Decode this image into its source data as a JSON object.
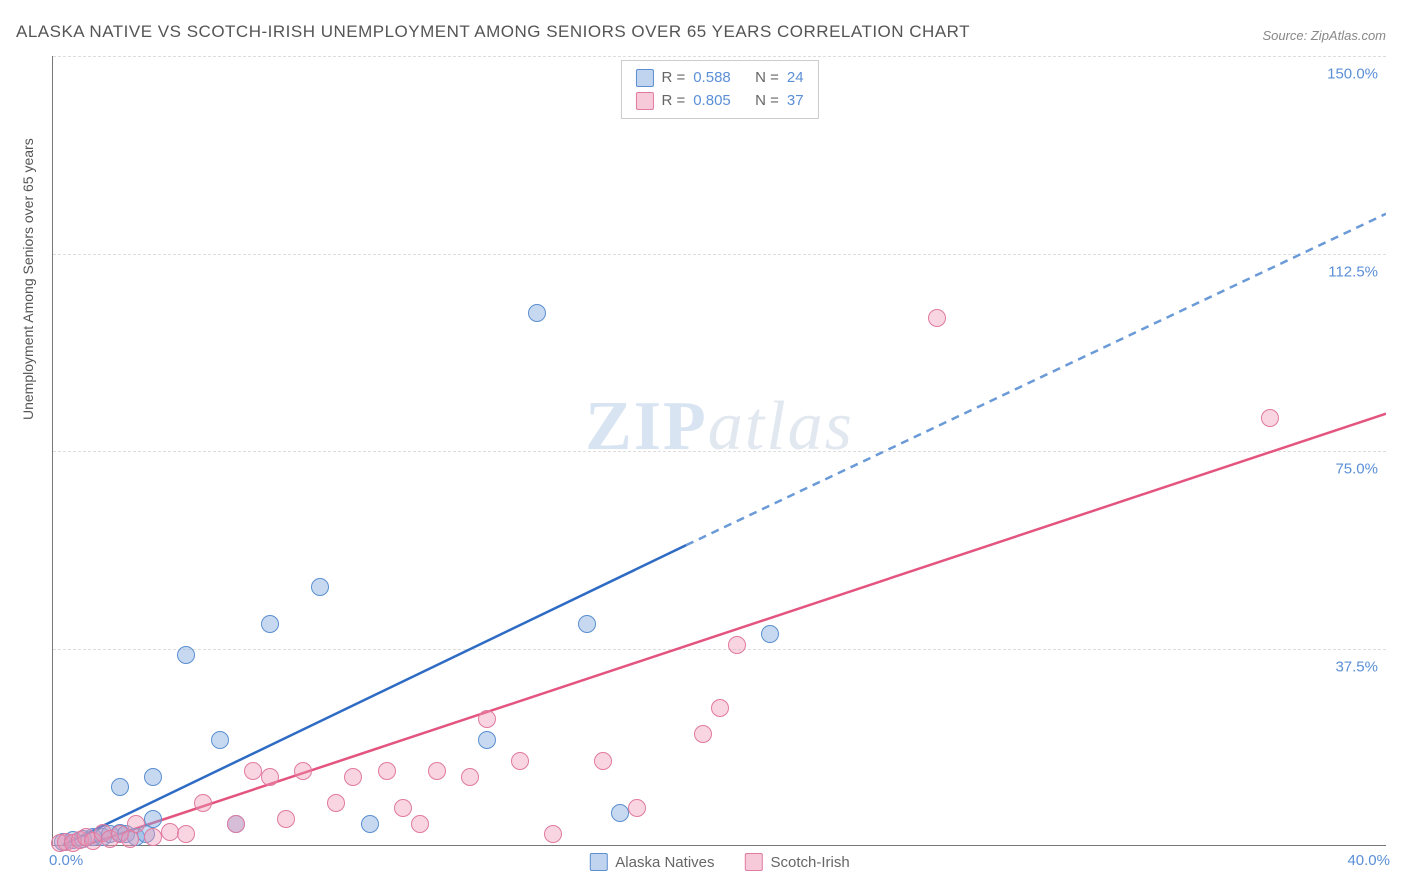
{
  "title": "ALASKA NATIVE VS SCOTCH-IRISH UNEMPLOYMENT AMONG SENIORS OVER 65 YEARS CORRELATION CHART",
  "source": "Source: ZipAtlas.com",
  "ylabel": "Unemployment Among Seniors over 65 years",
  "watermark_a": "ZIP",
  "watermark_b": "atlas",
  "chart": {
    "type": "scatter",
    "xlim": [
      0,
      40
    ],
    "ylim": [
      0,
      150
    ],
    "xtick_min_label": "0.0%",
    "xtick_max_label": "40.0%",
    "yticks": [
      37.5,
      75.0,
      112.5,
      150.0
    ],
    "ytick_labels": [
      "37.5%",
      "75.0%",
      "112.5%",
      "150.0%"
    ],
    "background_color": "#ffffff",
    "grid_color": "#dddddd",
    "axis_color": "#777777",
    "tick_label_color": "#5b8fd6",
    "marker_radius": 9,
    "series": [
      {
        "name": "Alaska Natives",
        "color_fill": "rgba(130,170,225,0.45)",
        "color_stroke": "#5a8fd0",
        "line_color": "#2e6bc4",
        "line_dash_color": "#6a9ad8",
        "R": 0.588,
        "N": 24,
        "trend": {
          "x1": 0.3,
          "y1": 0,
          "x_solid_end": 19,
          "y_solid_end": 57,
          "x2": 40,
          "y2": 120
        },
        "points": [
          [
            0.3,
            0.5
          ],
          [
            0.6,
            1.0
          ],
          [
            0.9,
            1.2
          ],
          [
            1.2,
            1.5
          ],
          [
            1.5,
            1.5
          ],
          [
            1.7,
            2.0
          ],
          [
            2.0,
            2.3
          ],
          [
            2.2,
            2.0
          ],
          [
            2.5,
            1.5
          ],
          [
            2.8,
            2.0
          ],
          [
            2.0,
            11
          ],
          [
            3.0,
            13
          ],
          [
            3.0,
            5
          ],
          [
            4.0,
            36
          ],
          [
            5.0,
            20
          ],
          [
            5.5,
            4
          ],
          [
            6.5,
            42
          ],
          [
            8.0,
            49
          ],
          [
            9.5,
            4
          ],
          [
            13.0,
            20
          ],
          [
            14.5,
            101
          ],
          [
            16.0,
            42
          ],
          [
            17.0,
            6
          ],
          [
            21.5,
            40
          ]
        ]
      },
      {
        "name": "Scotch-Irish",
        "color_fill": "rgba(240,150,180,0.4)",
        "color_stroke": "#e07aa0",
        "line_color": "#e3557f",
        "R": 0.805,
        "N": 37,
        "trend": {
          "x1": 1.0,
          "y1": 0,
          "x2": 40,
          "y2": 82
        },
        "points": [
          [
            0.2,
            0.3
          ],
          [
            0.4,
            0.6
          ],
          [
            0.6,
            0.4
          ],
          [
            0.8,
            1.0
          ],
          [
            1.0,
            1.6
          ],
          [
            1.2,
            0.8
          ],
          [
            1.5,
            2.3
          ],
          [
            1.7,
            1.2
          ],
          [
            2.0,
            2.0
          ],
          [
            2.3,
            1.2
          ],
          [
            2.5,
            4
          ],
          [
            3.0,
            1.5
          ],
          [
            3.5,
            2.5
          ],
          [
            4.0,
            2.0
          ],
          [
            4.5,
            8
          ],
          [
            5.5,
            4
          ],
          [
            6.0,
            14
          ],
          [
            6.5,
            13
          ],
          [
            7.0,
            5
          ],
          [
            7.5,
            14
          ],
          [
            8.5,
            8
          ],
          [
            9.0,
            13
          ],
          [
            10.0,
            14
          ],
          [
            10.5,
            7
          ],
          [
            11.0,
            4
          ],
          [
            11.5,
            14
          ],
          [
            12.5,
            13
          ],
          [
            13.0,
            24
          ],
          [
            14.0,
            16
          ],
          [
            15.0,
            2
          ],
          [
            16.5,
            16
          ],
          [
            17.5,
            7
          ],
          [
            19.5,
            21
          ],
          [
            20.0,
            26
          ],
          [
            20.5,
            38
          ],
          [
            26.5,
            100
          ],
          [
            36.5,
            81
          ]
        ]
      }
    ],
    "legend": [
      "Alaska Natives",
      "Scotch-Irish"
    ]
  },
  "corr_box": {
    "rows": [
      {
        "swatch": "a",
        "r_label": "R =",
        "r_val": "0.588",
        "n_label": "N =",
        "n_val": "24"
      },
      {
        "swatch": "b",
        "r_label": "R =",
        "r_val": "0.805",
        "n_label": "N =",
        "n_val": "37"
      }
    ]
  }
}
